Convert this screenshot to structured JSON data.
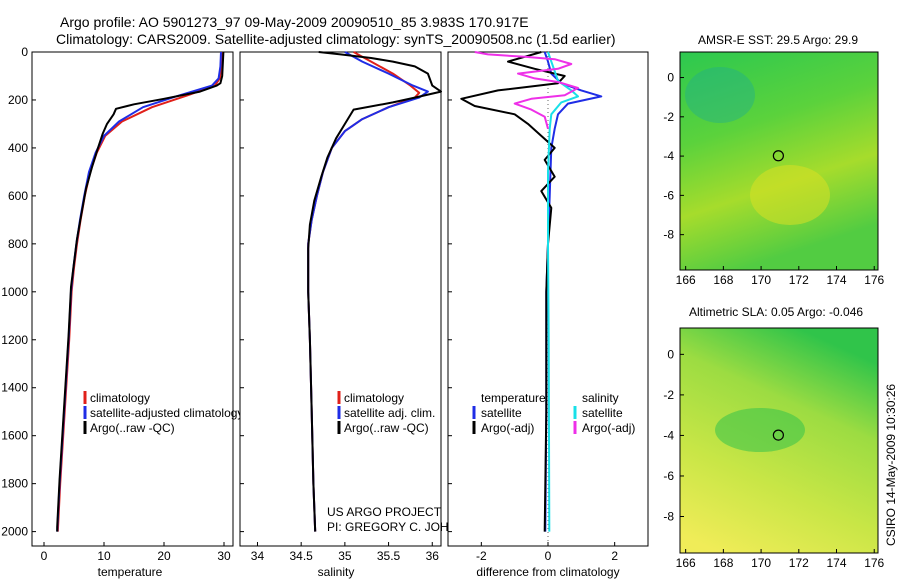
{
  "title_line1": "Argo profile: AO 5901273_97 09-May-2009 20090510_85 3.983S 170.917E",
  "title_line2": "Climatology: CARS2009. Satellite-adjusted climatology: synTS_20090508.nc (1.5d earlier)",
  "footer": {
    "project": "US ARGO PROJECT",
    "pi": "PI: GREGORY C. JOHNSON",
    "stamp": "CSIRO 14-May-2009 10:30:26"
  },
  "colors": {
    "clim": "#e0201a",
    "sat": "#1f2de6",
    "argo": "#000000",
    "sal_sat": "#18e0e8",
    "sal_argo": "#ee30e8"
  },
  "chart_data": [
    {
      "type": "line",
      "id": "temperature",
      "xlabel": "temperature",
      "xlim": [
        -2,
        31.5
      ],
      "xticks": [
        0,
        10,
        20,
        30
      ],
      "ylim": [
        0,
        2060
      ],
      "yticks": [
        0,
        200,
        400,
        600,
        800,
        1000,
        1200,
        1400,
        1600,
        1800,
        2000
      ],
      "legend": [
        "climatology",
        "satellite-adjusted climatology",
        "Argo(..raw -QC)"
      ],
      "series": [
        {
          "name": "climatology",
          "color": "clim",
          "points": [
            [
              29.7,
              0
            ],
            [
              29.6,
              60
            ],
            [
              29.3,
              110
            ],
            [
              28.5,
              140
            ],
            [
              24,
              180
            ],
            [
              18,
              230
            ],
            [
              13,
              290
            ],
            [
              10.2,
              350
            ],
            [
              8.8,
              420
            ],
            [
              7.7,
              500
            ],
            [
              6.8,
              600
            ],
            [
              6.1,
              700
            ],
            [
              5.5,
              800
            ],
            [
              5.0,
              900
            ],
            [
              4.6,
              1000
            ],
            [
              4.2,
              1200
            ],
            [
              3.7,
              1400
            ],
            [
              3.2,
              1600
            ],
            [
              2.7,
              1800
            ],
            [
              2.3,
              2000
            ]
          ]
        },
        {
          "name": "satellite-adjusted climatology",
          "color": "sat",
          "points": [
            [
              29.5,
              0
            ],
            [
              29.4,
              60
            ],
            [
              29.1,
              110
            ],
            [
              28,
              140
            ],
            [
              22,
              185
            ],
            [
              16.5,
              230
            ],
            [
              12.5,
              290
            ],
            [
              10,
              350
            ],
            [
              8.6,
              420
            ],
            [
              7.5,
              500
            ],
            [
              6.7,
              600
            ],
            [
              6.0,
              700
            ],
            [
              5.4,
              800
            ],
            [
              4.9,
              900
            ],
            [
              4.5,
              1000
            ],
            [
              4.1,
              1200
            ],
            [
              3.6,
              1400
            ],
            [
              3.1,
              1600
            ],
            [
              2.6,
              1800
            ],
            [
              2.2,
              2000
            ]
          ]
        },
        {
          "name": "Argo",
          "color": "argo",
          "points": [
            [
              29.9,
              0
            ],
            [
              29.8,
              50
            ],
            [
              29.7,
              100
            ],
            [
              29.4,
              130
            ],
            [
              28.8,
              140
            ],
            [
              26,
              165
            ],
            [
              20,
              195
            ],
            [
              15,
              218
            ],
            [
              12,
              237
            ],
            [
              11.6,
              260
            ],
            [
              10.5,
              300
            ],
            [
              9.8,
              340
            ],
            [
              9,
              400
            ],
            [
              8,
              480
            ],
            [
              7,
              570
            ],
            [
              6.2,
              680
            ],
            [
              5.5,
              780
            ],
            [
              5.0,
              880
            ],
            [
              4.5,
              980
            ],
            [
              4.1,
              1180
            ],
            [
              3.6,
              1380
            ],
            [
              3.1,
              1580
            ],
            [
              2.6,
              1780
            ],
            [
              2.2,
              1980
            ],
            [
              2.2,
              2000
            ]
          ]
        }
      ]
    },
    {
      "type": "line",
      "id": "salinity",
      "xlabel": "salinity",
      "xlim": [
        33.8,
        36.1
      ],
      "xticks": [
        34,
        34.5,
        35,
        35.5,
        36
      ],
      "ylim": [
        0,
        2060
      ],
      "legend": [
        "climatology",
        "satellite adj. clim.",
        "Argo(..raw -QC)"
      ],
      "series": [
        {
          "name": "climatology",
          "color": "clim",
          "points": [
            [
              35.1,
              0
            ],
            [
              35.3,
              40
            ],
            [
              35.55,
              90
            ],
            [
              35.75,
              140
            ],
            [
              35.85,
              170
            ],
            [
              35.8,
              190
            ],
            [
              35.5,
              230
            ],
            [
              35.2,
              280
            ],
            [
              35.0,
              330
            ],
            [
              34.85,
              400
            ],
            [
              34.75,
              500
            ],
            [
              34.68,
              600
            ],
            [
              34.62,
              700
            ],
            [
              34.58,
              800
            ],
            [
              34.58,
              1000
            ],
            [
              34.6,
              1200
            ],
            [
              34.62,
              1500
            ],
            [
              34.64,
              1800
            ],
            [
              34.66,
              2000
            ]
          ]
        },
        {
          "name": "satellite adj. clim.",
          "color": "sat",
          "points": [
            [
              35.0,
              0
            ],
            [
              35.2,
              40
            ],
            [
              35.5,
              90
            ],
            [
              35.78,
              140
            ],
            [
              35.95,
              165
            ],
            [
              35.85,
              190
            ],
            [
              35.5,
              230
            ],
            [
              35.2,
              280
            ],
            [
              35.0,
              330
            ],
            [
              34.85,
              400
            ],
            [
              34.75,
              500
            ],
            [
              34.68,
              600
            ],
            [
              34.62,
              700
            ],
            [
              34.58,
              800
            ],
            [
              34.58,
              1000
            ],
            [
              34.6,
              1200
            ],
            [
              34.62,
              1500
            ],
            [
              34.64,
              1800
            ],
            [
              34.66,
              2000
            ]
          ]
        },
        {
          "name": "Argo",
          "color": "argo",
          "points": [
            [
              34.7,
              0
            ],
            [
              34.95,
              10
            ],
            [
              35.3,
              25
            ],
            [
              35.55,
              40
            ],
            [
              35.8,
              60
            ],
            [
              35.95,
              90
            ],
            [
              36.0,
              140
            ],
            [
              36.1,
              165
            ],
            [
              35.8,
              190
            ],
            [
              35.55,
              210
            ],
            [
              35.1,
              240
            ],
            [
              35.0,
              300
            ],
            [
              34.9,
              360
            ],
            [
              34.8,
              440
            ],
            [
              34.73,
              520
            ],
            [
              34.65,
              620
            ],
            [
              34.6,
              720
            ],
            [
              34.58,
              820
            ],
            [
              34.58,
              1000
            ],
            [
              34.6,
              1200
            ],
            [
              34.62,
              1500
            ],
            [
              34.64,
              1800
            ],
            [
              34.66,
              2000
            ]
          ]
        }
      ]
    },
    {
      "type": "line",
      "id": "difference",
      "xlabel": "difference from climatology",
      "xlim": [
        -3,
        3
      ],
      "xticks": [
        -2,
        0,
        2
      ],
      "ylim": [
        0,
        2060
      ],
      "legend": [
        "temperature",
        "satellite",
        "Argo(-adj)",
        "salinity",
        "satellite",
        "Argo(-adj)"
      ],
      "series": [
        {
          "name": "temperature satellite",
          "color": "sat",
          "points": [
            [
              -0.1,
              0
            ],
            [
              0,
              40
            ],
            [
              0.1,
              90
            ],
            [
              0.4,
              130
            ],
            [
              1.0,
              160
            ],
            [
              1.6,
              185
            ],
            [
              0.6,
              215
            ],
            [
              0.3,
              260
            ],
            [
              0.2,
              320
            ],
            [
              0.1,
              400
            ],
            [
              0.05,
              600
            ],
            [
              0,
              800
            ],
            [
              -0.05,
              1000
            ],
            [
              -0.05,
              1500
            ],
            [
              -0.08,
              2000
            ]
          ]
        },
        {
          "name": "temperature Argo(-adj)",
          "color": "argo",
          "points": [
            [
              -0.2,
              0
            ],
            [
              -0.7,
              20
            ],
            [
              -1.2,
              40
            ],
            [
              -0.4,
              70
            ],
            [
              0.5,
              100
            ],
            [
              0.3,
              130
            ],
            [
              -1.5,
              160
            ],
            [
              -2.6,
              195
            ],
            [
              -2.2,
              225
            ],
            [
              -1.0,
              260
            ],
            [
              -0.6,
              300
            ],
            [
              -0.2,
              350
            ],
            [
              0.2,
              400
            ],
            [
              -0.1,
              450
            ],
            [
              0.2,
              520
            ],
            [
              -0.2,
              580
            ],
            [
              0.1,
              650
            ],
            [
              0,
              800
            ],
            [
              -0.05,
              1000
            ],
            [
              -0.05,
              1500
            ],
            [
              -0.1,
              2000
            ]
          ]
        },
        {
          "name": "salinity satellite",
          "color": "sal_sat",
          "points": [
            [
              0,
              0
            ],
            [
              0.1,
              40
            ],
            [
              0.2,
              80
            ],
            [
              0.3,
              120
            ],
            [
              0.7,
              160
            ],
            [
              0.9,
              185
            ],
            [
              0.4,
              210
            ],
            [
              0.1,
              260
            ],
            [
              0.05,
              320
            ],
            [
              0,
              500
            ],
            [
              0,
              800
            ],
            [
              0.02,
              1200
            ],
            [
              0.03,
              1600
            ],
            [
              0.04,
              2000
            ]
          ]
        },
        {
          "name": "salinity Argo(-adj)",
          "color": "sal_argo",
          "points": [
            [
              -2.2,
              0
            ],
            [
              -1.8,
              10
            ],
            [
              -0.7,
              20
            ],
            [
              0.2,
              30
            ],
            [
              0.7,
              50
            ],
            [
              0.3,
              70
            ],
            [
              -0.9,
              90
            ],
            [
              -0.4,
              110
            ],
            [
              0.3,
              125
            ],
            [
              0.9,
              150
            ],
            [
              0.5,
              180
            ],
            [
              -0.5,
              195
            ],
            [
              -1.0,
              215
            ],
            [
              -0.5,
              240
            ],
            [
              -0.1,
              270
            ],
            [
              0,
              320
            ]
          ]
        }
      ]
    },
    {
      "type": "heatmap",
      "id": "sst_map",
      "title": "AMSR-E SST: 29.5 Argo: 29.9",
      "xlim": [
        165.7,
        176.2
      ],
      "ylim": [
        -9.8,
        1.3
      ],
      "xticks": [
        166,
        168,
        170,
        172,
        174,
        176
      ],
      "yticks": [
        0,
        -2,
        -4,
        -6,
        -8
      ],
      "argo_position": [
        170.917,
        -3.983
      ]
    },
    {
      "type": "heatmap",
      "id": "sla_map",
      "title": "Altimetric SLA: 0.05 Argo: -0.046",
      "xlim": [
        165.7,
        176.2
      ],
      "ylim": [
        -9.8,
        1.3
      ],
      "xticks": [
        166,
        168,
        170,
        172,
        174,
        176
      ],
      "yticks": [
        0,
        -2,
        -4,
        -6,
        -8
      ],
      "argo_position": [
        170.917,
        -3.983
      ]
    }
  ]
}
